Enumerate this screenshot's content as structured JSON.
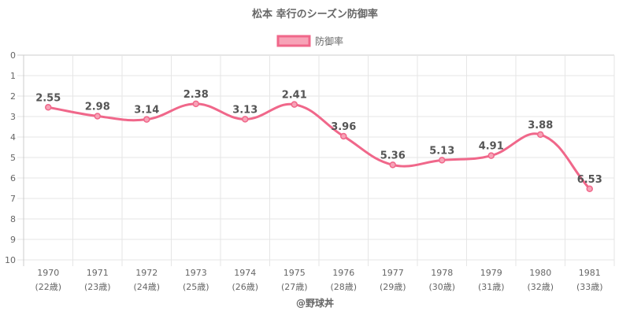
{
  "chart_data": {
    "type": "line",
    "title": "松本 幸行のシーズン防御率",
    "legend_position": "top",
    "categories": [
      "1970",
      "1971",
      "1972",
      "1973",
      "1974",
      "1975",
      "1976",
      "1977",
      "1978",
      "1979",
      "1980",
      "1981"
    ],
    "category_sublabels": [
      "(22歳)",
      "(23歳)",
      "(24歳)",
      "(25歳)",
      "(26歳)",
      "(27歳)",
      "(28歳)",
      "(29歳)",
      "(30歳)",
      "(31歳)",
      "(32歳)",
      "(33歳)"
    ],
    "series": [
      {
        "name": "防御率",
        "color": "#f0678a",
        "fill": "#f7a3b7",
        "values": [
          2.55,
          2.98,
          3.14,
          2.38,
          3.13,
          2.41,
          3.96,
          5.36,
          5.13,
          4.91,
          3.88,
          6.53
        ],
        "value_labels": [
          "2.55",
          "2.98",
          "3.14",
          "2.38",
          "3.13",
          "2.41",
          "3.96",
          "5.36",
          "5.13",
          "4.91",
          "3.88",
          "6.53"
        ]
      }
    ],
    "y_ticks": [
      "0",
      "1",
      "2",
      "3",
      "4",
      "5",
      "6",
      "7",
      "8",
      "9",
      "10"
    ],
    "ylim": [
      0,
      10
    ],
    "y_reversed": true,
    "grid": true
  },
  "credit": "@野球丼"
}
